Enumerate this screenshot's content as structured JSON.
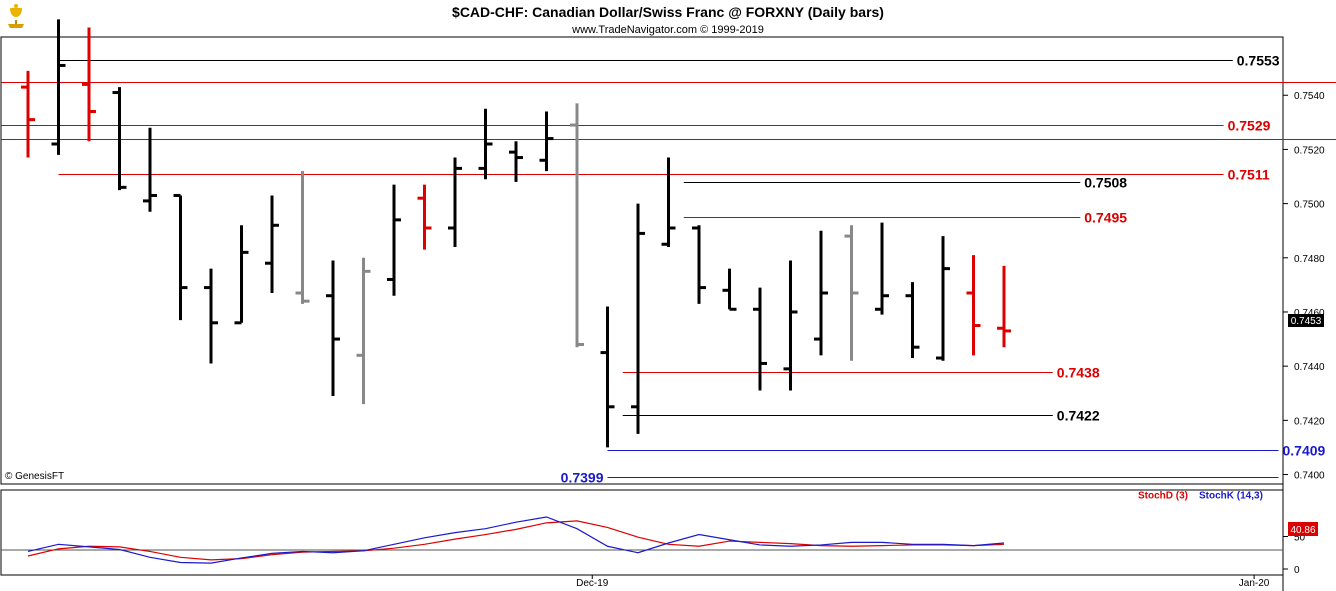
{
  "header": {
    "title": "$CAD-CHF:  Canadian Dollar/Swiss Franc @ FORXNY  (Daily bars)",
    "subtitle": "www.TradeNavigator.com © 1999-2019",
    "logo_icon": "gold-trophy-logo-icon"
  },
  "footer": {
    "copyright": "© GenesisFT"
  },
  "colors": {
    "up": "#000000",
    "down": "#dd0000",
    "neutral": "#888888",
    "support": "#1a1acc",
    "stochD": "#dd0000",
    "stochK": "#1a1acc",
    "panel_border": "#000000"
  },
  "chart_data": [
    {
      "type": "ohlc",
      "title": "$CAD-CHF:  Canadian Dollar/Swiss Franc @ FORXNY  (Daily bars)",
      "y_ticks": [
        "0.7540",
        "0.7520",
        "0.7500",
        "0.7480",
        "0.7460",
        "0.7440",
        "0.7420",
        "0.7400"
      ],
      "ylim": [
        0.73965,
        0.75615
      ],
      "last_price": "0.7453",
      "bars": [
        {
          "h": 0.7549,
          "l": 0.7517,
          "o": 0.7543,
          "c": 0.7531,
          "color": "down"
        },
        {
          "h": 0.7568,
          "l": 0.7518,
          "o": 0.7522,
          "c": 0.7551,
          "color": "up"
        },
        {
          "h": 0.7565,
          "l": 0.7523,
          "o": 0.7544,
          "c": 0.7534,
          "color": "down"
        },
        {
          "h": 0.7543,
          "l": 0.7505,
          "o": 0.7541,
          "c": 0.7506,
          "color": "up"
        },
        {
          "h": 0.7528,
          "l": 0.7497,
          "o": 0.7501,
          "c": 0.7503,
          "color": "up"
        },
        {
          "h": 0.7503,
          "l": 0.7457,
          "o": 0.7503,
          "c": 0.7469,
          "color": "up"
        },
        {
          "h": 0.7476,
          "l": 0.7441,
          "o": 0.7469,
          "c": 0.7456,
          "color": "up"
        },
        {
          "h": 0.7492,
          "l": 0.7456,
          "o": 0.7456,
          "c": 0.7482,
          "color": "up"
        },
        {
          "h": 0.7503,
          "l": 0.7467,
          "o": 0.7478,
          "c": 0.7492,
          "color": "up"
        },
        {
          "h": 0.7512,
          "l": 0.7463,
          "o": 0.7467,
          "c": 0.7464,
          "color": "neutral"
        },
        {
          "h": 0.7479,
          "l": 0.7429,
          "o": 0.7466,
          "c": 0.745,
          "color": "up"
        },
        {
          "h": 0.748,
          "l": 0.7426,
          "o": 0.7444,
          "c": 0.7475,
          "color": "neutral"
        },
        {
          "h": 0.7507,
          "l": 0.7466,
          "o": 0.7472,
          "c": 0.7494,
          "color": "up"
        },
        {
          "h": 0.7507,
          "l": 0.7483,
          "o": 0.7502,
          "c": 0.7491,
          "color": "down"
        },
        {
          "h": 0.7517,
          "l": 0.7484,
          "o": 0.7491,
          "c": 0.7513,
          "color": "up"
        },
        {
          "h": 0.7535,
          "l": 0.7509,
          "o": 0.7513,
          "c": 0.7522,
          "color": "up"
        },
        {
          "h": 0.7523,
          "l": 0.7508,
          "o": 0.7519,
          "c": 0.7517,
          "color": "up"
        },
        {
          "h": 0.7534,
          "l": 0.7512,
          "o": 0.7516,
          "c": 0.7524,
          "color": "up"
        },
        {
          "h": 0.7537,
          "l": 0.7447,
          "o": 0.7529,
          "c": 0.7448,
          "color": "neutral"
        },
        {
          "h": 0.7462,
          "l": 0.741,
          "o": 0.7445,
          "c": 0.7425,
          "color": "up"
        },
        {
          "h": 0.75,
          "l": 0.7415,
          "o": 0.7425,
          "c": 0.7489,
          "color": "up"
        },
        {
          "h": 0.7517,
          "l": 0.7484,
          "o": 0.7485,
          "c": 0.7491,
          "color": "up"
        },
        {
          "h": 0.7492,
          "l": 0.7463,
          "o": 0.7491,
          "c": 0.7469,
          "color": "up"
        },
        {
          "h": 0.7476,
          "l": 0.7461,
          "o": 0.7468,
          "c": 0.7461,
          "color": "up"
        },
        {
          "h": 0.7469,
          "l": 0.7431,
          "o": 0.7461,
          "c": 0.7441,
          "color": "up"
        },
        {
          "h": 0.7479,
          "l": 0.7431,
          "o": 0.7439,
          "c": 0.746,
          "color": "up"
        },
        {
          "h": 0.749,
          "l": 0.7444,
          "o": 0.745,
          "c": 0.7467,
          "color": "up"
        },
        {
          "h": 0.7492,
          "l": 0.7442,
          "o": 0.7488,
          "c": 0.7467,
          "color": "neutral"
        },
        {
          "h": 0.7493,
          "l": 0.7459,
          "o": 0.7461,
          "c": 0.7466,
          "color": "up"
        },
        {
          "h": 0.7471,
          "l": 0.7443,
          "o": 0.7466,
          "c": 0.7447,
          "color": "up"
        },
        {
          "h": 0.7488,
          "l": 0.7442,
          "o": 0.7443,
          "c": 0.7476,
          "color": "up"
        },
        {
          "h": 0.7481,
          "l": 0.7444,
          "o": 0.7467,
          "c": 0.7455,
          "color": "down"
        },
        {
          "h": 0.7477,
          "l": 0.7447,
          "o": 0.7454,
          "c": 0.7453,
          "color": "down"
        }
      ],
      "levels": [
        {
          "value": 0.7553,
          "label": "0.7553",
          "color": "up",
          "from_bar": 1,
          "to_bar": 39.5
        },
        {
          "value": 0.7545,
          "label": "0.7545",
          "color": "down",
          "from_bar": -1,
          "to_bar": 44.6
        },
        {
          "value": 0.7529,
          "label": "0.7529",
          "color": "down",
          "from_bar": -1,
          "to_bar": 39.2
        },
        {
          "value": 0.7524,
          "label": "0.7524",
          "color": "down",
          "from_bar": -1,
          "to_bar": 44.6
        },
        {
          "value": 0.7511,
          "label": "0.7511",
          "color": "down",
          "from_bar": 1,
          "to_bar": 39.2
        },
        {
          "value": 0.7508,
          "label": "0.7508",
          "color": "up",
          "from_bar": 21.5,
          "to_bar": 34.5
        },
        {
          "value": 0.7495,
          "label": "0.7495",
          "color": "down",
          "from_bar": 21.5,
          "to_bar": 34.5
        },
        {
          "value": 0.7438,
          "label": "0.7438",
          "color": "down",
          "from_bar": 19.5,
          "to_bar": 33.6
        },
        {
          "value": 0.7422,
          "label": "0.7422",
          "color": "up",
          "from_bar": 19.5,
          "to_bar": 33.6
        },
        {
          "value": 0.7409,
          "label": "0.7409",
          "color": "support",
          "from_bar": 19.0,
          "to_bar": 41.0
        },
        {
          "value": 0.7399,
          "label": "0.7399",
          "color": "support",
          "from_bar": 19.0,
          "to_bar": 41.0,
          "label_left": true
        }
      ]
    },
    {
      "type": "line",
      "title": "",
      "legend": [
        "StochD (3)",
        "StochK (14,3)"
      ],
      "y_ticks": [
        "50",
        "0"
      ],
      "last_value": "40.86",
      "x_labels": [
        {
          "label": "Dec-19",
          "bar": 18.5
        },
        {
          "label": "Jan-20",
          "bar": 40.2
        }
      ],
      "ylim": [
        0,
        100
      ],
      "series": [
        {
          "name": "StochD (3)",
          "color": "stochD",
          "values": [
            20,
            31,
            35,
            34,
            27,
            18,
            14,
            16,
            22,
            26,
            27,
            28,
            32,
            38,
            46,
            53,
            61,
            71,
            74,
            64,
            49,
            38,
            35,
            43,
            41,
            39,
            36,
            35,
            36,
            37,
            37,
            36,
            38
          ]
        },
        {
          "name": "StochK (14,3)",
          "color": "stochK",
          "values": [
            27,
            38,
            34,
            30,
            18,
            10,
            9,
            17,
            24,
            27,
            25,
            28,
            38,
            48,
            56,
            62,
            72,
            80,
            62,
            35,
            25,
            40,
            53,
            45,
            37,
            35,
            37,
            41,
            41,
            38,
            38,
            36,
            40
          ]
        }
      ]
    }
  ]
}
